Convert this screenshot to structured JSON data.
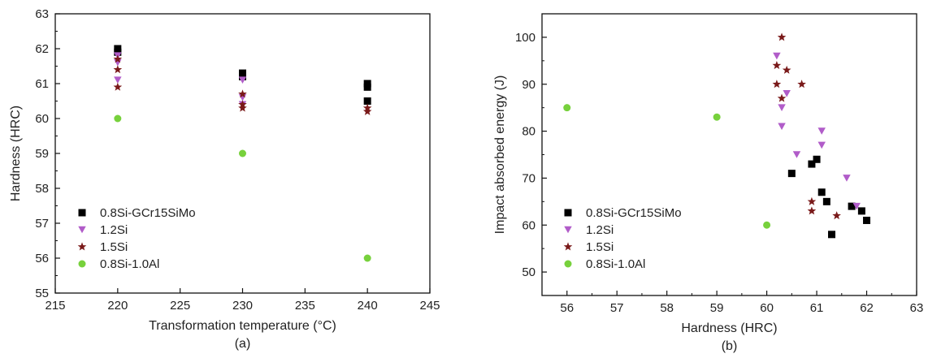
{
  "chart_data": [
    {
      "type": "scatter",
      "panel_label": "(a)",
      "xlabel": "Transformation temperature (°C)",
      "ylabel": "Hardness (HRC)",
      "xlim": [
        215,
        245
      ],
      "ylim": [
        55,
        63
      ],
      "xticks": [
        "215",
        "220",
        "225",
        "230",
        "235",
        "240",
        "245"
      ],
      "yticks": [
        "55",
        "56",
        "57",
        "58",
        "59",
        "60",
        "61",
        "62",
        "63"
      ],
      "grid": false,
      "legend_position": "bottom-left",
      "series": [
        {
          "name": "0.8Si-GCr15SiMo",
          "marker": "square",
          "color": "#000000",
          "points": [
            [
              220,
              62.0
            ],
            [
              220,
              61.9
            ],
            [
              230,
              61.3
            ],
            [
              230,
              61.2
            ],
            [
              240,
              61.0
            ],
            [
              240,
              60.9
            ],
            [
              240,
              60.5
            ]
          ]
        },
        {
          "name": "1.2Si",
          "marker": "triangle-down",
          "color": "#b15cc9",
          "points": [
            [
              220,
              61.8
            ],
            [
              220,
              61.6
            ],
            [
              220,
              61.1
            ],
            [
              230,
              61.1
            ],
            [
              230,
              60.6
            ],
            [
              230,
              60.4
            ]
          ]
        },
        {
          "name": "1.5Si",
          "marker": "star",
          "color": "#7a1a1a",
          "points": [
            [
              220,
              61.7
            ],
            [
              220,
              61.4
            ],
            [
              220,
              60.9
            ],
            [
              230,
              60.7
            ],
            [
              230,
              60.4
            ],
            [
              230,
              60.3
            ],
            [
              240,
              60.3
            ],
            [
              240,
              60.2
            ]
          ]
        },
        {
          "name": "0.8Si-1.0Al",
          "marker": "circle",
          "color": "#77d13c",
          "points": [
            [
              220,
              60.0
            ],
            [
              230,
              59.0
            ],
            [
              240,
              56.0
            ]
          ]
        }
      ]
    },
    {
      "type": "scatter",
      "panel_label": "(b)",
      "xlabel": "Hardness (HRC)",
      "ylabel": "Impact absorbed energy (J)",
      "xlim": [
        55.5,
        63
      ],
      "ylim": [
        45,
        105
      ],
      "xticks": [
        "56",
        "57",
        "58",
        "59",
        "60",
        "61",
        "62",
        "63"
      ],
      "yticks": [
        "50",
        "60",
        "70",
        "80",
        "90",
        "100"
      ],
      "grid": false,
      "legend_position": "bottom-left",
      "series": [
        {
          "name": "0.8Si-GCr15SiMo",
          "marker": "square",
          "color": "#000000",
          "points": [
            [
              60.5,
              71
            ],
            [
              60.9,
              73
            ],
            [
              61.0,
              74
            ],
            [
              61.1,
              67
            ],
            [
              61.2,
              65
            ],
            [
              61.3,
              58
            ],
            [
              61.7,
              64
            ],
            [
              61.9,
              63
            ],
            [
              62.0,
              61
            ]
          ]
        },
        {
          "name": "1.2Si",
          "marker": "triangle-down",
          "color": "#b15cc9",
          "points": [
            [
              60.2,
              96
            ],
            [
              60.3,
              85
            ],
            [
              60.3,
              81
            ],
            [
              60.4,
              88
            ],
            [
              60.6,
              75
            ],
            [
              61.1,
              80
            ],
            [
              61.1,
              77
            ],
            [
              61.6,
              70
            ],
            [
              61.8,
              64
            ]
          ]
        },
        {
          "name": "1.5Si",
          "marker": "star",
          "color": "#7a1a1a",
          "points": [
            [
              60.3,
              100
            ],
            [
              60.2,
              94
            ],
            [
              60.4,
              93
            ],
            [
              60.2,
              90
            ],
            [
              60.7,
              90
            ],
            [
              60.3,
              87
            ],
            [
              60.9,
              65
            ],
            [
              60.9,
              63
            ],
            [
              61.4,
              62
            ]
          ]
        },
        {
          "name": "0.8Si-1.0Al",
          "marker": "circle",
          "color": "#77d13c",
          "points": [
            [
              56.0,
              85
            ],
            [
              59.0,
              83
            ],
            [
              60.0,
              60
            ]
          ]
        }
      ]
    }
  ]
}
